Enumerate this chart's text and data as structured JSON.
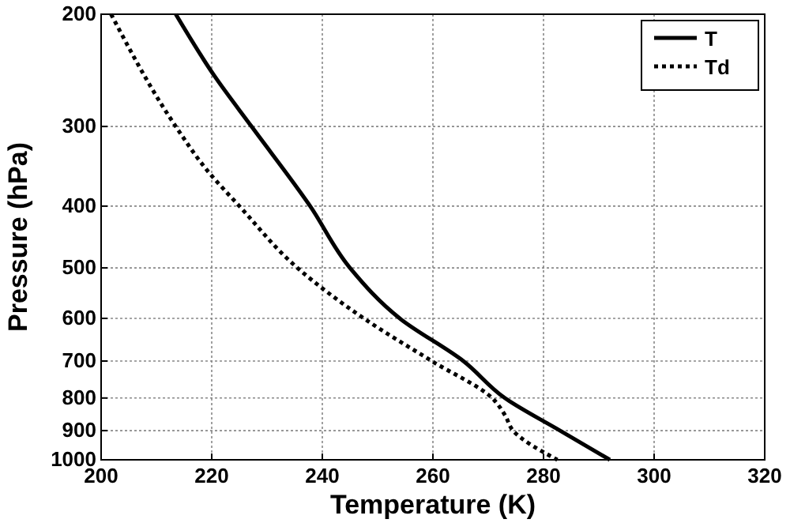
{
  "chart_data": {
    "type": "line",
    "xlabel": "Temperature (K)",
    "ylabel": "Pressure (hPa)",
    "xlim": [
      200,
      320
    ],
    "xticks": [
      200,
      220,
      240,
      260,
      280,
      300,
      320
    ],
    "ylim": [
      1000,
      200
    ],
    "yticks": [
      200,
      300,
      400,
      500,
      600,
      700,
      800,
      900,
      1000
    ],
    "log": "y",
    "grid": true,
    "legend": "top right",
    "series": [
      {
        "name": "T",
        "color": "#000000",
        "line_style": "solid",
        "x": [
          213.5,
          220.5,
          227.2,
          237.8,
          245,
          254,
          265.5,
          273,
          283,
          292
        ],
        "values": [
          200,
          250,
          300,
          400,
          500,
          600,
          700,
          800,
          900,
          1000
        ]
      },
      {
        "name": "Td",
        "color": "#000000",
        "line_style": "dotted",
        "x": [
          201.8,
          213.5,
          219,
          225,
          235.5,
          247.5,
          259.8,
          270.7,
          273,
          274.5,
          282.5
        ],
        "values": [
          200,
          300,
          350,
          400,
          500,
          600,
          700,
          800,
          850,
          900,
          1000
        ]
      }
    ]
  }
}
